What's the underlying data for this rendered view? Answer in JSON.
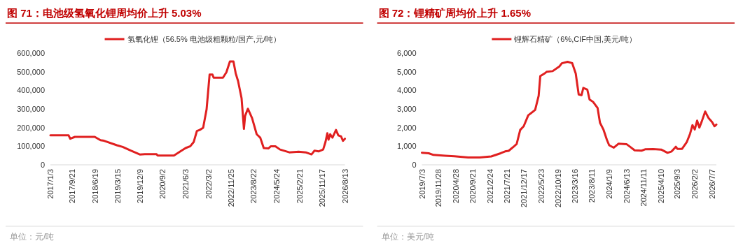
{
  "chart_data": [
    {
      "type": "line",
      "title": "图 71：电池级氢氧化锂周均价上升 5.03%",
      "legend": "top",
      "marker": "none",
      "line_style": "solid",
      "grid": false,
      "annotations": [
        "单位：元/吨"
      ],
      "xlim": [
        "2017-01-03",
        "2026-08-13"
      ],
      "xticks": [
        {
          "value": "2017-01-03",
          "label": "2017/1/3"
        },
        {
          "value": "2017-09-21",
          "label": "2017/9/21"
        },
        {
          "value": "2018-06-19",
          "label": "2018/6/19"
        },
        {
          "value": "2019-03-15",
          "label": "2019/3/15"
        },
        {
          "value": "2019-12-09",
          "label": "2019/12/9"
        },
        {
          "value": "2020-09-02",
          "label": "2020/9/2"
        },
        {
          "value": "2021-06-03",
          "label": "2021/6/3"
        },
        {
          "value": "2022-03-02",
          "label": "2022/3/2"
        },
        {
          "value": "2022-11-25",
          "label": "2022/11/25"
        },
        {
          "value": "2023-08-22",
          "label": "2023/8/22"
        },
        {
          "value": "2024-05-24",
          "label": "2024/5/24"
        },
        {
          "value": "2025-02-21",
          "label": "2025/2/21"
        },
        {
          "value": "2025-11-17",
          "label": "2025/11/17"
        },
        {
          "value": "2026-08-13",
          "label": "2026/8/13"
        }
      ],
      "ylim": [
        0,
        600000
      ],
      "yticks": [
        0,
        {
          "value": 100000,
          "label": "100,000"
        },
        {
          "value": 200000,
          "label": "200,000"
        },
        {
          "value": 300000,
          "label": "300,000"
        },
        {
          "value": 400000,
          "label": "400,000"
        },
        {
          "value": 500000,
          "label": "500,000"
        },
        {
          "value": 600000,
          "label": "600,000"
        }
      ],
      "series": [
        {
          "name": "氢氧化锂（56.5% 电池级粗颗粒/国产,元/吨）",
          "color": "#e02020",
          "x": [
            "2017-01-03",
            "2017-08-08",
            "2017-08-27",
            "2017-10-22",
            "2018-06-15",
            "2018-08-23",
            "2018-10-04",
            "2019-03-06",
            "2019-05-14",
            "2019-08-19",
            "2019-12-08",
            "2020-02-02",
            "2020-06-20",
            "2020-07-04",
            "2021-01-14",
            "2021-03-25",
            "2021-06-02",
            "2021-07-28",
            "2021-09-07",
            "2021-10-14",
            "2021-11-16",
            "2021-12-28",
            "2022-02-07",
            "2022-03-15",
            "2022-04-18",
            "2022-05-02",
            "2022-08-21",
            "2022-10-01",
            "2022-11-12",
            "2022-12-24",
            "2023-01-20",
            "2023-02-17",
            "2023-03-31",
            "2023-04-28",
            "2023-05-12",
            "2023-06-14",
            "2023-08-03",
            "2023-09-27",
            "2023-11-08",
            "2023-12-20",
            "2024-02-13",
            "2024-03-12",
            "2024-05-07",
            "2024-07-01",
            "2024-10-20",
            "2025-02-08",
            "2025-05-03",
            "2025-07-11",
            "2025-08-16",
            "2025-10-03",
            "2025-11-27",
            "2025-12-25",
            "2026-01-16",
            "2026-01-30",
            "2026-02-19",
            "2026-03-18",
            "2026-04-29",
            "2026-05-27",
            "2026-06-29",
            "2026-07-21",
            "2026-08-13"
          ],
          "values": [
            158000,
            158000,
            140000,
            150000,
            150000,
            132000,
            129000,
            105000,
            96000,
            76000,
            55000,
            57000,
            57000,
            50000,
            50000,
            70000,
            90000,
            100000,
            123000,
            181000,
            187000,
            199000,
            298000,
            485000,
            485000,
            468000,
            468000,
            497000,
            555000,
            555000,
            491000,
            450000,
            357000,
            193000,
            263000,
            301000,
            251000,
            164000,
            146000,
            90000,
            88000,
            99000,
            99000,
            82000,
            67000,
            70000,
            67000,
            56000,
            76000,
            72000,
            82000,
            123000,
            170000,
            135000,
            164000,
            146000,
            187000,
            158000,
            152000,
            129000,
            140000
          ]
        }
      ]
    },
    {
      "type": "line",
      "title": "图 72：锂精矿周均价上升 1.65%",
      "legend": "top",
      "marker": "none",
      "line_style": "solid",
      "grid": false,
      "annotations": [
        "单位：美元/吨"
      ],
      "xlim": [
        "2019-07-03",
        "2026-08-13"
      ],
      "xticks": [
        {
          "value": "2019-07-03",
          "label": "2019/7/3"
        },
        {
          "value": "2019-11-28",
          "label": "2019/11/28"
        },
        {
          "value": "2020-04-28",
          "label": "2020/4/28"
        },
        {
          "value": "2020-09-21",
          "label": "2020/9/21"
        },
        {
          "value": "2021-02-24",
          "label": "2021/2/24"
        },
        {
          "value": "2021-07-21",
          "label": "2021/7/21"
        },
        {
          "value": "2021-12-17",
          "label": "2021/12/17"
        },
        {
          "value": "2022-05-23",
          "label": "2022/5/23"
        },
        {
          "value": "2022-10-19",
          "label": "2022/10/19"
        },
        {
          "value": "2023-03-16",
          "label": "2023/3/16"
        },
        {
          "value": "2023-08-11",
          "label": "2023/8/11"
        },
        {
          "value": "2024-01-09",
          "label": "2024/1/9"
        },
        {
          "value": "2024-06-13",
          "label": "2024/6/13"
        },
        {
          "value": "2024-11-11",
          "label": "2024/11/11"
        },
        {
          "value": "2025-04-10",
          "label": "2025/4/10"
        },
        {
          "value": "2025-09-03",
          "label": "2025/9/3"
        },
        {
          "value": "2026-02-02",
          "label": "2026/2/2"
        },
        {
          "value": "2026-07-07",
          "label": "2026/7/7"
        }
      ],
      "ylim": [
        0,
        6000
      ],
      "yticks": [
        0,
        {
          "value": 1000,
          "label": "1,000"
        },
        {
          "value": 2000,
          "label": "2,000"
        },
        {
          "value": 3000,
          "label": "3,000"
        },
        {
          "value": 4000,
          "label": "4,000"
        },
        {
          "value": 5000,
          "label": "5,000"
        },
        {
          "value": 6000,
          "label": "6,000"
        }
      ],
      "series": [
        {
          "name": "锂辉石精矿（6%,CIF中国,美元/吨）",
          "color": "#e02020",
          "x": [
            "2019-07-03",
            "2019-09-01",
            "2019-10-13",
            "2020-01-23",
            "2020-04-14",
            "2020-08-14",
            "2020-11-24",
            "2021-03-06",
            "2021-05-27",
            "2021-07-06",
            "2021-08-06",
            "2021-09-26",
            "2021-10-16",
            "2021-11-16",
            "2021-12-17",
            "2022-01-26",
            "2022-03-28",
            "2022-04-28",
            "2022-05-12",
            "2022-06-18",
            "2022-07-09",
            "2022-08-29",
            "2022-10-29",
            "2022-11-18",
            "2023-01-08",
            "2023-02-18",
            "2023-03-21",
            "2023-04-16",
            "2023-05-11",
            "2023-05-27",
            "2023-07-01",
            "2023-07-21",
            "2023-08-21",
            "2023-09-30",
            "2023-10-21",
            "2023-11-20",
            "2023-12-21",
            "2024-01-10",
            "2024-02-20",
            "2024-04-01",
            "2024-06-11",
            "2024-07-12",
            "2024-08-22",
            "2024-10-22",
            "2024-11-22",
            "2025-02-01",
            "2025-04-13",
            "2025-06-08",
            "2025-07-14",
            "2025-08-20",
            "2025-09-03",
            "2025-10-14",
            "2025-11-24",
            "2025-12-24",
            "2026-01-14",
            "2026-02-03",
            "2026-02-24",
            "2026-03-16",
            "2026-04-06",
            "2026-05-06",
            "2026-06-06",
            "2026-07-07",
            "2026-07-27",
            "2026-08-13"
          ],
          "values": [
            650,
            620,
            530,
            490,
            460,
            395,
            395,
            450,
            620,
            720,
            750,
            1010,
            1120,
            1870,
            2070,
            2660,
            2950,
            3710,
            4760,
            4900,
            5000,
            5030,
            5290,
            5450,
            5530,
            5460,
            4900,
            3780,
            3740,
            4130,
            4040,
            3510,
            3380,
            3050,
            2260,
            1900,
            1340,
            1050,
            920,
            1130,
            1110,
            970,
            780,
            760,
            830,
            840,
            820,
            645,
            720,
            970,
            855,
            855,
            1210,
            1670,
            2130,
            1900,
            2370,
            2000,
            2330,
            2860,
            2500,
            2290,
            2070,
            2160
          ]
        }
      ]
    }
  ]
}
